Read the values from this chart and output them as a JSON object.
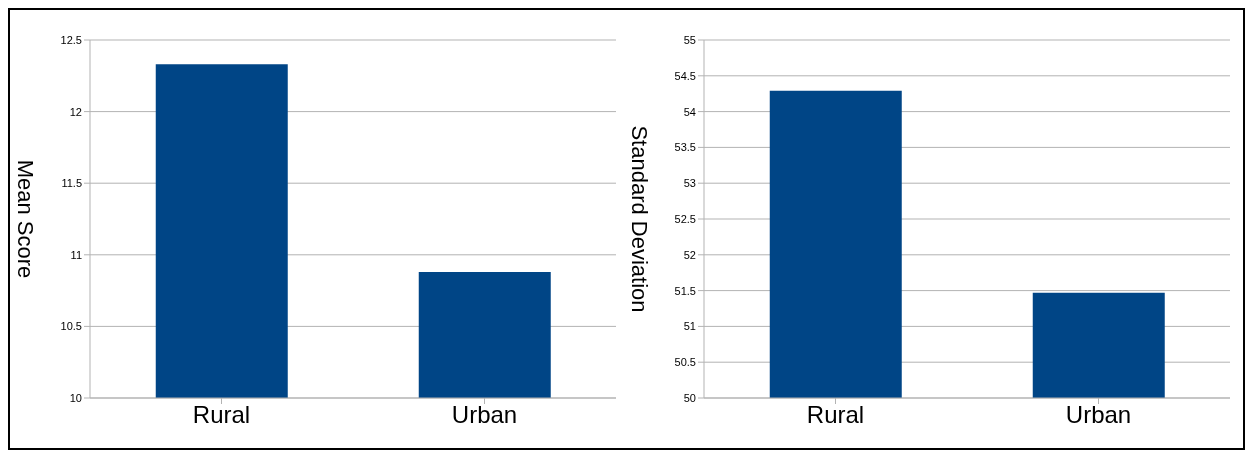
{
  "chart_data": [
    {
      "type": "bar",
      "ylabel": "Mean Score",
      "categories": [
        "Rural",
        "Urban"
      ],
      "values": [
        12.33,
        10.88
      ],
      "color": "#004586",
      "ylim": [
        10,
        12.5
      ],
      "yticks": [
        10,
        10.5,
        11,
        11.5,
        12,
        12.5
      ],
      "grid": "y"
    },
    {
      "type": "bar",
      "ylabel": "Standard Deviation",
      "categories": [
        "Rural",
        "Urban"
      ],
      "values": [
        54.29,
        51.47
      ],
      "color": "#004586",
      "ylim": [
        50,
        55
      ],
      "yticks": [
        50,
        50.5,
        51,
        51.5,
        52,
        52.5,
        53,
        53.5,
        54,
        54.5,
        55
      ],
      "grid": "y"
    }
  ]
}
